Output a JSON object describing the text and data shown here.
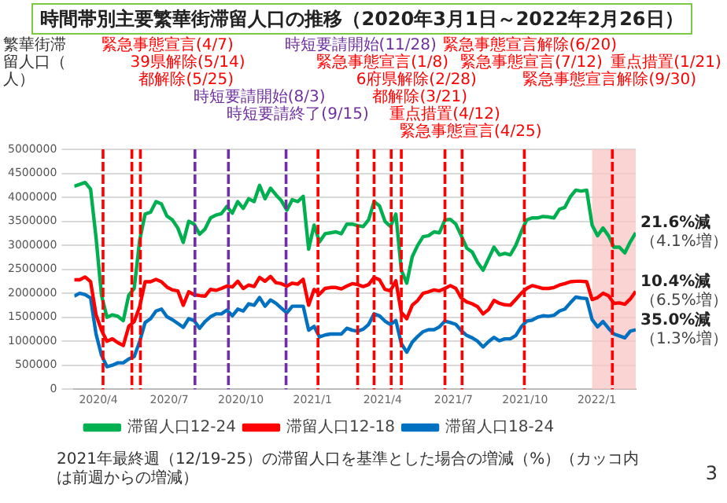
{
  "chart_data": {
    "type": "line",
    "title": "時間帯別主要繁華街滞留人口の推移（2020年3月1日～2022年2月26日）",
    "ylabel": "繁華街滞留人口（人）",
    "x": [
      "2020-03-01",
      "2020-03-08",
      "2020-03-15",
      "2020-03-22",
      "2020-03-29",
      "2020-04-05",
      "2020-04-12",
      "2020-04-19",
      "2020-04-26",
      "2020-05-03",
      "2020-05-10",
      "2020-05-17",
      "2020-05-24",
      "2020-05-31",
      "2020-06-07",
      "2020-06-14",
      "2020-06-21",
      "2020-06-28",
      "2020-07-05",
      "2020-07-12",
      "2020-07-19",
      "2020-07-26",
      "2020-08-02",
      "2020-08-09",
      "2020-08-16",
      "2020-08-23",
      "2020-08-30",
      "2020-09-06",
      "2020-09-13",
      "2020-09-20",
      "2020-09-27",
      "2020-10-04",
      "2020-10-11",
      "2020-10-18",
      "2020-10-25",
      "2020-11-01",
      "2020-11-08",
      "2020-11-15",
      "2020-11-22",
      "2020-11-29",
      "2020-12-06",
      "2020-12-13",
      "2020-12-20",
      "2020-12-27",
      "2021-01-03",
      "2021-01-10",
      "2021-01-17",
      "2021-01-24",
      "2021-01-31",
      "2021-02-07",
      "2021-02-14",
      "2021-02-21",
      "2021-02-28",
      "2021-03-07",
      "2021-03-14",
      "2021-03-21",
      "2021-03-28",
      "2021-04-04",
      "2021-04-11",
      "2021-04-18",
      "2021-04-25",
      "2021-05-02",
      "2021-05-09",
      "2021-05-16",
      "2021-05-23",
      "2021-05-30",
      "2021-06-06",
      "2021-06-13",
      "2021-06-20",
      "2021-06-27",
      "2021-07-04",
      "2021-07-11",
      "2021-07-18",
      "2021-07-25",
      "2021-08-01",
      "2021-08-08",
      "2021-08-15",
      "2021-08-22",
      "2021-08-29",
      "2021-09-05",
      "2021-09-12",
      "2021-09-19",
      "2021-09-26",
      "2021-10-03",
      "2021-10-10",
      "2021-10-17",
      "2021-10-24",
      "2021-10-31",
      "2021-11-07",
      "2021-11-14",
      "2021-11-21",
      "2021-11-28",
      "2021-12-05",
      "2021-12-12",
      "2021-12-19",
      "2021-12-26",
      "2022-01-02",
      "2022-01-09",
      "2022-01-16",
      "2022-01-23",
      "2022-01-30",
      "2022-02-06",
      "2022-02-13",
      "2022-02-20"
    ],
    "series": [
      {
        "name": "滞留人口12-24",
        "color": "#00b050",
        "values": [
          4230000,
          4270000,
          4310000,
          4170000,
          3160000,
          1960000,
          1500000,
          1550000,
          1520000,
          1430000,
          1960000,
          2100000,
          3100000,
          3650000,
          3690000,
          3910000,
          3860000,
          3610000,
          3530000,
          3360000,
          3060000,
          3500000,
          3440000,
          3230000,
          3340000,
          3570000,
          3630000,
          3660000,
          3810000,
          3670000,
          3910000,
          3770000,
          3970000,
          3910000,
          4250000,
          3970000,
          4190000,
          4050000,
          3930000,
          3730000,
          3950000,
          3910000,
          4020000,
          2920000,
          3420000,
          3070000,
          3240000,
          3260000,
          3280000,
          3240000,
          3440000,
          3440000,
          3410000,
          3390000,
          3530000,
          3910000,
          3820000,
          3500000,
          3390000,
          3650000,
          2480000,
          2210000,
          2760000,
          3000000,
          3180000,
          3200000,
          3280000,
          3260000,
          3530000,
          3540000,
          3440000,
          3200000,
          2940000,
          2860000,
          2640000,
          2480000,
          2720000,
          2960000,
          2800000,
          2830000,
          2800000,
          3000000,
          3280000,
          3530000,
          3570000,
          3570000,
          3600000,
          3590000,
          3570000,
          3750000,
          3790000,
          4010000,
          4150000,
          4130000,
          4150000,
          3420000,
          3200000,
          3360000,
          3200000,
          2960000,
          2960000,
          2840000,
          3070000,
          3260000
        ]
      },
      {
        "name": "滞留人口12-18",
        "color": "#ff0000",
        "values": [
          2280000,
          2280000,
          2340000,
          2240000,
          1550000,
          1230000,
          1000000,
          1050000,
          970000,
          910000,
          1310000,
          1410000,
          1720000,
          2240000,
          2240000,
          2290000,
          2240000,
          2130000,
          2070000,
          2050000,
          1750000,
          2030000,
          1970000,
          1950000,
          1940000,
          2080000,
          2060000,
          2100000,
          2150000,
          2130000,
          2250000,
          2100000,
          2170000,
          2140000,
          2330000,
          2250000,
          2350000,
          2220000,
          2200000,
          2150000,
          2210000,
          2190000,
          2290000,
          1750000,
          2080000,
          1980000,
          2100000,
          2120000,
          2120000,
          2090000,
          2150000,
          2200000,
          2180000,
          2140000,
          2180000,
          2330000,
          2280000,
          2080000,
          2050000,
          2260000,
          1600000,
          1470000,
          1750000,
          1850000,
          2000000,
          2030000,
          2070000,
          2050000,
          2100000,
          2160000,
          2100000,
          1900000,
          1820000,
          1780000,
          1720000,
          1570000,
          1660000,
          1850000,
          1790000,
          1760000,
          1750000,
          1870000,
          2000000,
          2100000,
          2160000,
          2130000,
          2100000,
          2100000,
          2120000,
          2170000,
          2200000,
          2240000,
          2250000,
          2250000,
          2240000,
          1870000,
          1910000,
          2000000,
          1950000,
          1790000,
          1800000,
          1770000,
          1880000,
          2040000
        ]
      },
      {
        "name": "滞留人口18-24",
        "color": "#0070c0",
        "values": [
          1940000,
          2000000,
          1970000,
          1900000,
          1150000,
          710000,
          470000,
          500000,
          550000,
          550000,
          630000,
          680000,
          990000,
          1390000,
          1470000,
          1630000,
          1670000,
          1510000,
          1450000,
          1370000,
          1290000,
          1470000,
          1430000,
          1270000,
          1410000,
          1510000,
          1570000,
          1570000,
          1650000,
          1530000,
          1670000,
          1630000,
          1780000,
          1750000,
          1910000,
          1730000,
          1860000,
          1790000,
          1690000,
          1590000,
          1730000,
          1730000,
          1730000,
          1230000,
          1310000,
          1090000,
          1130000,
          1150000,
          1150000,
          1150000,
          1270000,
          1230000,
          1210000,
          1250000,
          1350000,
          1570000,
          1530000,
          1420000,
          1350000,
          1430000,
          950000,
          770000,
          980000,
          1100000,
          1200000,
          1240000,
          1240000,
          1300000,
          1420000,
          1390000,
          1350000,
          1220000,
          1120000,
          1070000,
          1000000,
          880000,
          990000,
          1080000,
          1010000,
          1050000,
          1050000,
          1120000,
          1300000,
          1420000,
          1440000,
          1500000,
          1530000,
          1520000,
          1540000,
          1630000,
          1670000,
          1800000,
          1920000,
          1900000,
          1890000,
          1450000,
          1300000,
          1410000,
          1270000,
          1150000,
          1110000,
          1070000,
          1210000,
          1240000
        ]
      }
    ],
    "xlim": [
      "2020-03-01",
      "2022-02-20"
    ],
    "xticks": [
      {
        "value": "2020-04-01",
        "label": "2020/4"
      },
      {
        "value": "2020-07-01",
        "label": "2020/7"
      },
      {
        "value": "2020-10-01",
        "label": "2020/10"
      },
      {
        "value": "2021-01-01",
        "label": "2021/1"
      },
      {
        "value": "2021-04-01",
        "label": "2021/4"
      },
      {
        "value": "2021-07-01",
        "label": "2021/7"
      },
      {
        "value": "2021-10-01",
        "label": "2021/10"
      },
      {
        "value": "2022-01-01",
        "label": "2022/1"
      }
    ],
    "ylim": [
      0,
      5000000
    ],
    "yticks": [
      0,
      500000,
      1000000,
      1500000,
      2000000,
      2500000,
      3000000,
      3500000,
      4000000,
      4500000,
      5000000
    ],
    "grid": "y",
    "legend": "bottom",
    "line_style": "solid",
    "ref_lines": [
      {
        "axis": "x",
        "value": "2020-04-07",
        "label": "緊急事態宣言(4/7)",
        "color": "#ff0000",
        "line_style": "dashed"
      },
      {
        "axis": "x",
        "value": "2020-05-14",
        "label": "39県解除(5/14)",
        "color": "#ff0000",
        "line_style": "dashed"
      },
      {
        "axis": "x",
        "value": "2020-05-25",
        "label": "都解除(5/25)",
        "color": "#ff0000",
        "line_style": "dashed"
      },
      {
        "axis": "x",
        "value": "2020-08-03",
        "label": "時短要請開始(8/3)",
        "color": "#7030a0",
        "line_style": "dashed"
      },
      {
        "axis": "x",
        "value": "2020-09-15",
        "label": "時短要請終了(9/15)",
        "color": "#7030a0",
        "line_style": "dashed"
      },
      {
        "axis": "x",
        "value": "2020-11-28",
        "label": "時短要請開始(11/28)",
        "color": "#7030a0",
        "line_style": "dashed"
      },
      {
        "axis": "x",
        "value": "2021-01-08",
        "label": "緊急事態宣言(1/8)",
        "color": "#ff0000",
        "line_style": "dashed"
      },
      {
        "axis": "x",
        "value": "2021-02-28",
        "label": "6府県解除(2/28)",
        "color": "#ff0000",
        "line_style": "dashed"
      },
      {
        "axis": "x",
        "value": "2021-03-21",
        "label": "都解除(3/21)",
        "color": "#ff0000",
        "line_style": "dashed"
      },
      {
        "axis": "x",
        "value": "2021-04-12",
        "label": "重点措置(4/12)",
        "color": "#ff0000",
        "line_style": "dashed"
      },
      {
        "axis": "x",
        "value": "2021-04-25",
        "label": "緊急事態宣言(4/25)",
        "color": "#ff0000",
        "line_style": "dashed"
      },
      {
        "axis": "x",
        "value": "2021-06-20",
        "label": "緊急事態宣言解除(6/20)",
        "color": "#ff0000",
        "line_style": "dashed"
      },
      {
        "axis": "x",
        "value": "2021-07-12",
        "label": "緊急事態宣言(7/12)",
        "color": "#ff0000",
        "line_style": "dashed"
      },
      {
        "axis": "x",
        "value": "2021-09-30",
        "label": "緊急事態宣言解除(9/30)",
        "color": "#ff0000",
        "line_style": "dashed"
      },
      {
        "axis": "x",
        "value": "2022-01-21",
        "label": "重点措置(1/21)",
        "color": "#ff0000",
        "line_style": "dashed"
      }
    ],
    "bands": [
      {
        "axis": "x",
        "from": "2021-12-26",
        "to": "2022-02-20",
        "color": "#f8c4c4"
      }
    ],
    "annotations": [
      {
        "text": "21.6%減",
        "x": "2022-02-20",
        "y": 3260000
      },
      {
        "text": "（4.1%増）",
        "x": "2022-02-20",
        "y": 3260000
      },
      {
        "text": "10.4%減",
        "x": "2022-02-20",
        "y": 2040000
      },
      {
        "text": "（6.5%増）",
        "x": "2022-02-20",
        "y": 2040000
      },
      {
        "text": "35.0%減",
        "x": "2022-02-20",
        "y": 1240000
      },
      {
        "text": "（1.3%増）",
        "x": "2022-02-20",
        "y": 1240000
      },
      "2021年最終週（12/19-25）の滞留人口を基準とした場合の増減（%）（カッコ内は前週からの増減）",
      "3"
    ]
  }
}
